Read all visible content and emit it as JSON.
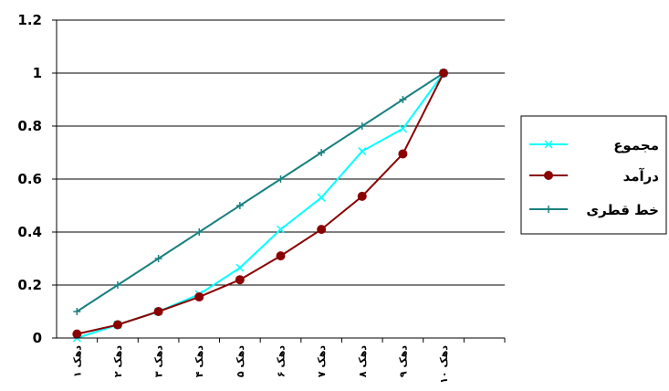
{
  "chart_data": {
    "type": "line",
    "categories": [
      "دهک ۱",
      "دهک ۲",
      "دهک ۳",
      "دهک ۴",
      "دهک ۵",
      "دهک ۶",
      "دهک ۷",
      "دهک ۸",
      "دهک ۹",
      "دهک ۱۰"
    ],
    "ylim": [
      0,
      1.2
    ],
    "yticks": [
      "0",
      "0.2",
      "0.4",
      "0.6",
      "0.8",
      "1",
      "1.2"
    ],
    "grid": true,
    "legend_position": "right",
    "series": [
      {
        "name": "مجموع",
        "marker": "x",
        "color": "#00ffff",
        "values": [
          0.0,
          0.05,
          0.1,
          0.165,
          0.265,
          0.41,
          0.53,
          0.705,
          0.79,
          1.0
        ]
      },
      {
        "name": "درآمد",
        "marker": "circle",
        "color": "#8b0000",
        "values": [
          0.015,
          0.05,
          0.1,
          0.155,
          0.22,
          0.31,
          0.41,
          0.535,
          0.695,
          1.0
        ]
      },
      {
        "name": "خط قطری",
        "marker": "plus",
        "color": "#1a8080",
        "values": [
          0.1,
          0.2,
          0.3,
          0.4,
          0.5,
          0.6,
          0.7,
          0.8,
          0.9,
          1.0
        ]
      }
    ]
  }
}
